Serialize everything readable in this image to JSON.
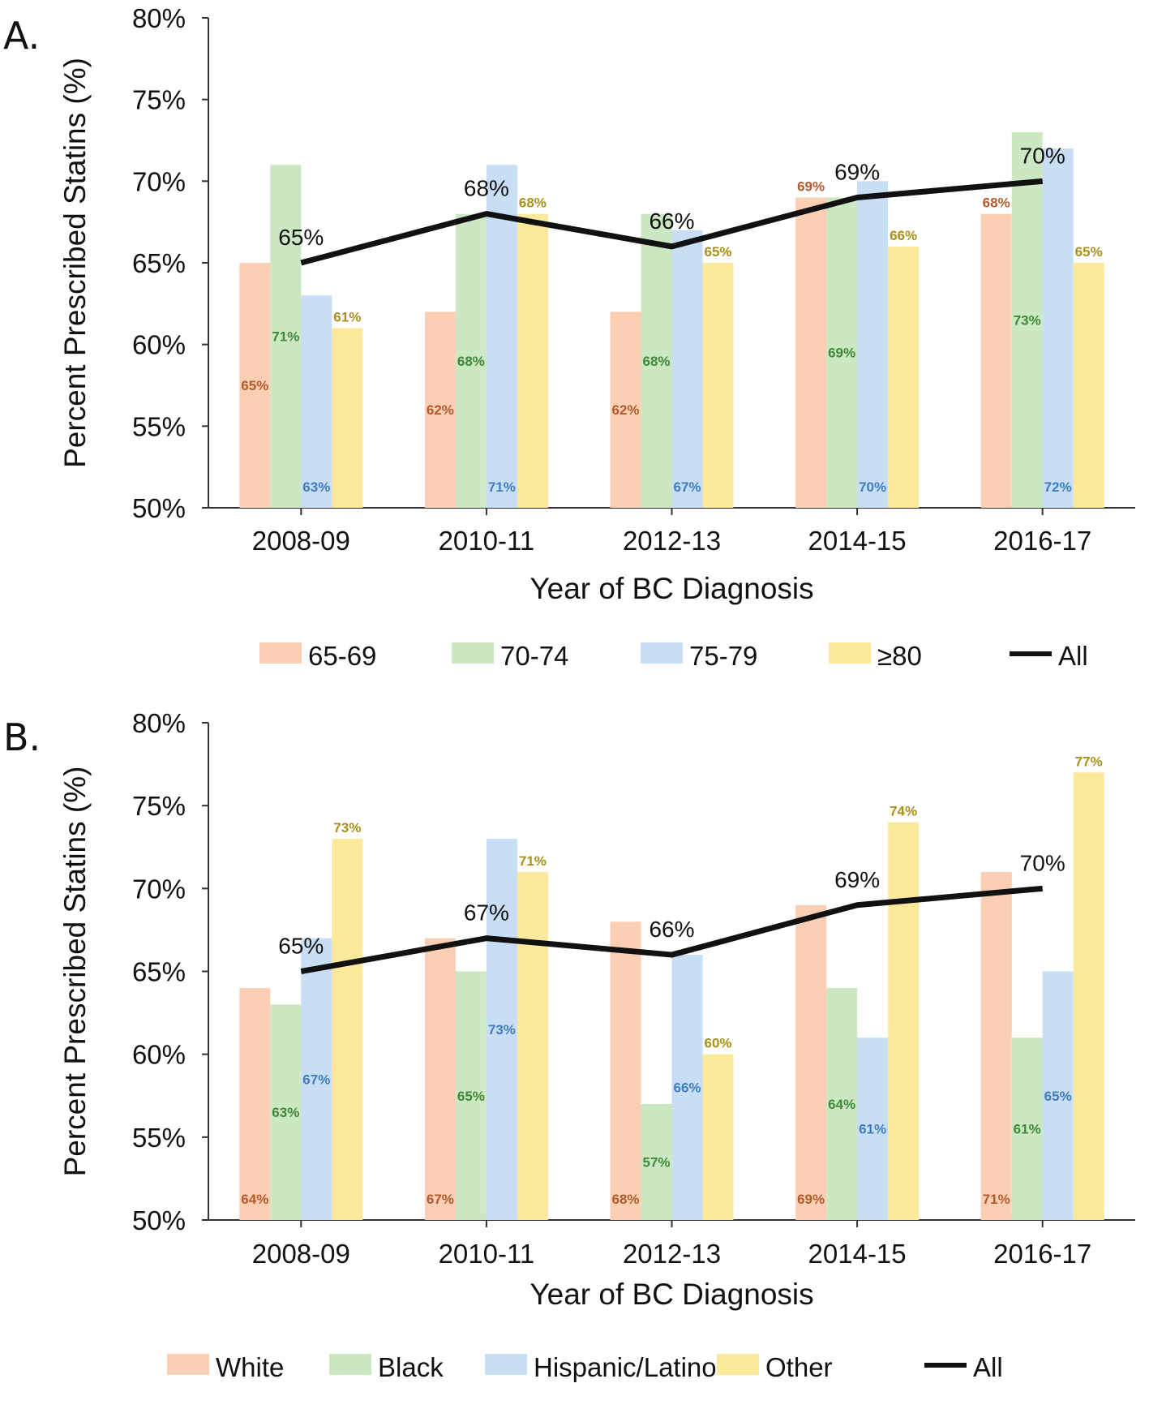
{
  "colors": {
    "bar": [
      "#fbcfb4",
      "#cce8c2",
      "#c7def5",
      "#fce99c"
    ],
    "bar_label": [
      "#b25a2c",
      "#3e8a38",
      "#3f7cc0",
      "#a8901c"
    ],
    "line": "#111111",
    "axis": "#333333"
  },
  "chart_data": [
    {
      "panel_label": "A.",
      "type": "bar",
      "categories": [
        "2008-09",
        "2010-11",
        "2012-13",
        "2014-15",
        "2016-17"
      ],
      "xlabel": "Year of BC Diagnosis",
      "ylabel": "Percent Prescribed Statins (%)",
      "ylim": [
        50,
        80
      ],
      "yticks": [
        "50%",
        "55%",
        "60%",
        "65%",
        "70%",
        "75%",
        "80%"
      ],
      "series": [
        {
          "name": "65-69",
          "values": [
            65,
            62,
            62,
            69,
            68
          ],
          "labels": [
            "65%",
            "62%",
            "62%",
            "69%",
            "68%"
          ]
        },
        {
          "name": "70-74",
          "values": [
            71,
            68,
            68,
            69,
            73
          ],
          "labels": [
            "71%",
            "68%",
            "68%",
            "69%",
            "73%"
          ]
        },
        {
          "name": "75-79",
          "values": [
            63,
            71,
            67,
            70,
            72
          ],
          "labels": [
            "63%",
            "71%",
            "67%",
            "70%",
            "72%"
          ]
        },
        {
          "name": "≥80",
          "values": [
            61,
            68,
            65,
            66,
            65
          ],
          "labels": [
            "61%",
            "68%",
            "65%",
            "66%",
            "65%"
          ]
        }
      ],
      "line": {
        "name": "All",
        "values": [
          65,
          68,
          66,
          69,
          70
        ],
        "labels": [
          "65%",
          "68%",
          "66%",
          "69%",
          "70%"
        ]
      }
    },
    {
      "panel_label": "B.",
      "type": "bar",
      "categories": [
        "2008-09",
        "2010-11",
        "2012-13",
        "2014-15",
        "2016-17"
      ],
      "xlabel": "Year of BC Diagnosis",
      "ylabel": "Percent Prescribed Statins (%)",
      "ylim": [
        50,
        80
      ],
      "yticks": [
        "50%",
        "55%",
        "60%",
        "65%",
        "70%",
        "75%",
        "80%"
      ],
      "series": [
        {
          "name": "White",
          "values": [
            64,
            67,
            68,
            69,
            71
          ],
          "labels": [
            "64%",
            "67%",
            "68%",
            "69%",
            "71%"
          ]
        },
        {
          "name": "Black",
          "values": [
            63,
            65,
            57,
            64,
            61
          ],
          "labels": [
            "63%",
            "65%",
            "57%",
            "64%",
            "61%"
          ]
        },
        {
          "name": "Hispanic/Latino",
          "values": [
            67,
            73,
            66,
            61,
            65
          ],
          "labels": [
            "67%",
            "73%",
            "66%",
            "61%",
            "65%"
          ]
        },
        {
          "name": "Other",
          "values": [
            73,
            71,
            60,
            74,
            77
          ],
          "labels": [
            "73%",
            "71%",
            "60%",
            "74%",
            "77%"
          ]
        }
      ],
      "line": {
        "name": "All",
        "values": [
          65,
          67,
          66,
          69,
          70
        ],
        "labels": [
          "65%",
          "67%",
          "66%",
          "69%",
          "70%"
        ]
      }
    }
  ]
}
